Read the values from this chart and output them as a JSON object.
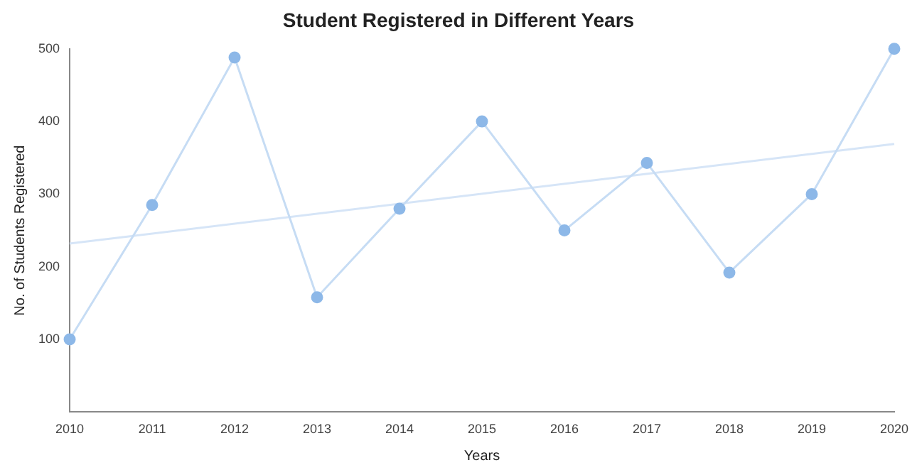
{
  "chart_data": {
    "type": "line",
    "title": "Student Registered in Different Years",
    "xlabel": "Years",
    "ylabel": "No. of Students Registered",
    "x": [
      2010,
      2011,
      2012,
      2013,
      2014,
      2015,
      2016,
      2017,
      2018,
      2019,
      2020
    ],
    "xlim": [
      2010,
      2020
    ],
    "xticks": [
      2010,
      2011,
      2012,
      2013,
      2014,
      2015,
      2016,
      2017,
      2018,
      2019,
      2020
    ],
    "ylim": [
      0,
      500
    ],
    "yticks": [
      100,
      200,
      300,
      400,
      500
    ],
    "grid": false,
    "legend": false,
    "series": [
      {
        "type": "line",
        "color": "#c6dcf4",
        "marker": "circle",
        "values": [
          100,
          285,
          488,
          158,
          280,
          400,
          250,
          343,
          192,
          300,
          500
        ]
      },
      {
        "type": "line",
        "color": "#d6e5f7",
        "marker": "none",
        "x": [
          2010,
          2020
        ],
        "values": [
          232,
          369
        ]
      }
    ]
  }
}
